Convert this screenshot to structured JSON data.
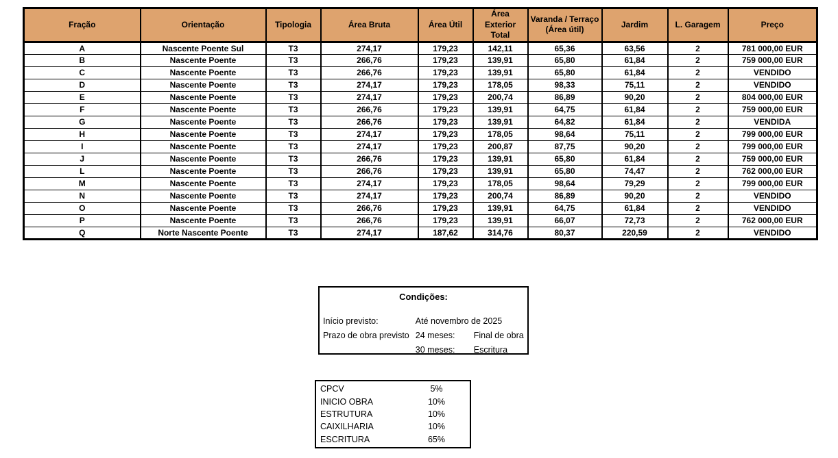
{
  "colors": {
    "header_bg": "#dea36e",
    "border": "#000000",
    "background": "#ffffff"
  },
  "table": {
    "headers": [
      "Fração",
      "Orientação",
      "Tipologia",
      "Área Bruta",
      "Área Útil",
      "Área Exterior\nTotal",
      "Varanda / Terraço\n(Área útil)",
      "Jardim",
      "L. Garagem",
      "Preço"
    ],
    "rows": [
      [
        "A",
        "Nascente Poente Sul",
        "T3",
        "274,17",
        "179,23",
        "142,11",
        "65,36",
        "63,56",
        "2",
        "781 000,00 EUR"
      ],
      [
        "B",
        "Nascente Poente",
        "T3",
        "266,76",
        "179,23",
        "139,91",
        "65,80",
        "61,84",
        "2",
        "759 000,00 EUR"
      ],
      [
        "C",
        "Nascente Poente",
        "T3",
        "266,76",
        "179,23",
        "139,91",
        "65,80",
        "61,84",
        "2",
        "VENDIDO"
      ],
      [
        "D",
        "Nascente Poente",
        "T3",
        "274,17",
        "179,23",
        "178,05",
        "98,33",
        "75,11",
        "2",
        "VENDIDO"
      ],
      [
        "E",
        "Nascente Poente",
        "T3",
        "274,17",
        "179,23",
        "200,74",
        "86,89",
        "90,20",
        "2",
        "804 000,00 EUR"
      ],
      [
        "F",
        "Nascente Poente",
        "T3",
        "266,76",
        "179,23",
        "139,91",
        "64,75",
        "61,84",
        "2",
        "759 000,00 EUR"
      ],
      [
        "G",
        "Nascente Poente",
        "T3",
        "266,76",
        "179,23",
        "139,91",
        "64,82",
        "61,84",
        "2",
        "VENDIDA"
      ],
      [
        "H",
        "Nascente Poente",
        "T3",
        "274,17",
        "179,23",
        "178,05",
        "98,64",
        "75,11",
        "2",
        "799 000,00 EUR"
      ],
      [
        "I",
        "Nascente Poente",
        "T3",
        "274,17",
        "179,23",
        "200,87",
        "87,75",
        "90,20",
        "2",
        "799 000,00 EUR"
      ],
      [
        "J",
        "Nascente Poente",
        "T3",
        "266,76",
        "179,23",
        "139,91",
        "65,80",
        "61,84",
        "2",
        "759 000,00 EUR"
      ],
      [
        "L",
        "Nascente Poente",
        "T3",
        "266,76",
        "179,23",
        "139,91",
        "65,80",
        "74,47",
        "2",
        "762 000,00 EUR"
      ],
      [
        "M",
        "Nascente Poente",
        "T3",
        "274,17",
        "179,23",
        "178,05",
        "98,64",
        "79,29",
        "2",
        "799 000,00 EUR"
      ],
      [
        "N",
        "Nascente Poente",
        "T3",
        "274,17",
        "179,23",
        "200,74",
        "86,89",
        "90,20",
        "2",
        "VENDIDO"
      ],
      [
        "O",
        "Nascente Poente",
        "T3",
        "266,76",
        "179,23",
        "139,91",
        "64,75",
        "61,84",
        "2",
        "VENDIDO"
      ],
      [
        "P",
        "Nascente Poente",
        "T3",
        "266,76",
        "179,23",
        "139,91",
        "66,07",
        "72,73",
        "2",
        "762 000,00 EUR"
      ],
      [
        "Q",
        "Norte Nascente Poente",
        "T3",
        "274,17",
        "187,62",
        "314,76",
        "80,37",
        "220,59",
        "2",
        "VENDIDO"
      ]
    ]
  },
  "conditions": {
    "title": "Condições:",
    "rows": [
      {
        "label": "Início previsto:",
        "value": "Até novembro de 2025",
        "value2": ""
      },
      {
        "label": "Prazo de obra previsto",
        "value": "24 meses:",
        "value2": "Final de obra"
      },
      {
        "label": "",
        "value": "30 meses:",
        "value2": "Escritura"
      }
    ]
  },
  "payment_schedule": {
    "items": [
      {
        "label": "CPCV",
        "value": "5%"
      },
      {
        "label": "INICIO OBRA",
        "value": "10%"
      },
      {
        "label": "ESTRUTURA",
        "value": "10%"
      },
      {
        "label": "CAIXILHARIA",
        "value": "10%"
      },
      {
        "label": "ESCRITURA",
        "value": "65%"
      }
    ]
  }
}
